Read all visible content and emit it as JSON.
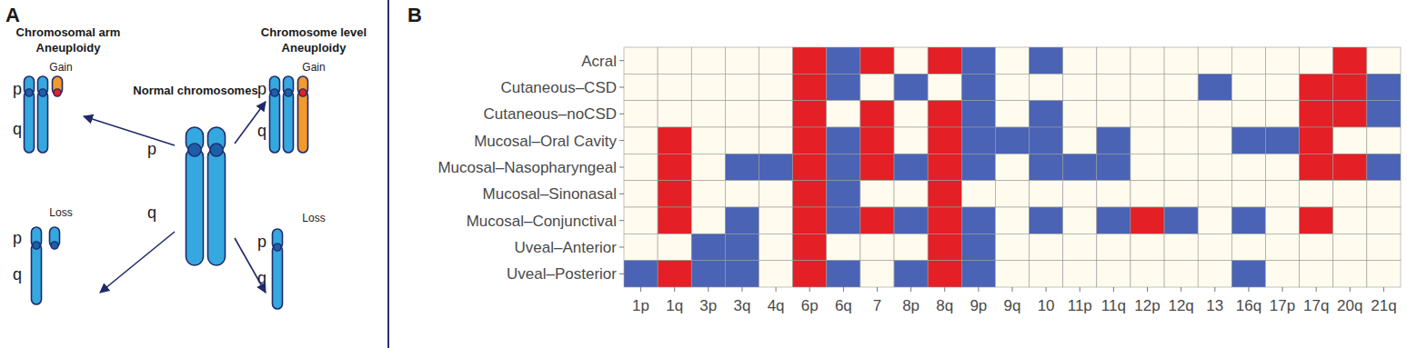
{
  "chart_data": {
    "type": "heatmap",
    "panel_label": "B",
    "categories": [
      "1p",
      "1q",
      "3p",
      "3q",
      "4q",
      "6p",
      "6q",
      "7",
      "8p",
      "8q",
      "9p",
      "9q",
      "10",
      "11p",
      "11q",
      "12p",
      "12q",
      "13",
      "16q",
      "17p",
      "17q",
      "20q",
      "21q"
    ],
    "rows": [
      "Acral",
      "Cutaneous–CSD",
      "Cutaneous–noCSD",
      "Mucosal–Oral Cavity",
      "Mucosal–Nasopharyngeal",
      "Mucosal–Sinonasal",
      "Mucosal–Conjunctival",
      "Uveal–Anterior",
      "Uveal–Posterior"
    ],
    "cells": [
      [
        0,
        0,
        0,
        0,
        0,
        1,
        -1,
        1,
        0,
        1,
        -1,
        0,
        -1,
        0,
        0,
        0,
        0,
        0,
        0,
        0,
        0,
        1,
        0
      ],
      [
        0,
        0,
        0,
        0,
        0,
        1,
        -1,
        0,
        -1,
        0,
        -1,
        0,
        0,
        0,
        0,
        0,
        0,
        -1,
        0,
        0,
        1,
        1,
        -1
      ],
      [
        0,
        0,
        0,
        0,
        0,
        1,
        0,
        1,
        0,
        1,
        -1,
        0,
        -1,
        0,
        0,
        0,
        0,
        0,
        0,
        0,
        1,
        1,
        -1
      ],
      [
        0,
        1,
        0,
        0,
        0,
        1,
        -1,
        1,
        0,
        1,
        -1,
        -1,
        -1,
        0,
        -1,
        0,
        0,
        0,
        -1,
        -1,
        1,
        0,
        0
      ],
      [
        0,
        1,
        0,
        -1,
        -1,
        1,
        -1,
        1,
        -1,
        1,
        -1,
        0,
        -1,
        -1,
        -1,
        0,
        0,
        0,
        0,
        0,
        1,
        1,
        -1
      ],
      [
        0,
        1,
        0,
        0,
        0,
        1,
        -1,
        0,
        0,
        1,
        0,
        0,
        0,
        0,
        0,
        0,
        0,
        0,
        0,
        0,
        0,
        0,
        0
      ],
      [
        0,
        1,
        0,
        -1,
        0,
        1,
        -1,
        1,
        -1,
        1,
        -1,
        0,
        -1,
        0,
        -1,
        1,
        -1,
        0,
        -1,
        0,
        1,
        0,
        0
      ],
      [
        0,
        0,
        -1,
        -1,
        0,
        1,
        0,
        0,
        0,
        1,
        -1,
        0,
        0,
        0,
        0,
        0,
        0,
        0,
        0,
        0,
        0,
        0,
        0
      ],
      [
        -1,
        1,
        -1,
        -1,
        0,
        1,
        -1,
        0,
        -1,
        1,
        -1,
        0,
        0,
        0,
        0,
        0,
        0,
        0,
        -1,
        0,
        0,
        0,
        0
      ]
    ]
  },
  "diagram": {
    "panel_label": "A",
    "arm_title": "Chromosomal arm",
    "arm_subtitle": "Aneuploidy",
    "chromosome_title": "Chromosome level",
    "chromosome_subtitle": "Aneuploidy",
    "normal_label": "Normal chromosomes",
    "gain_label": "Gain",
    "loss_label": "Loss",
    "p_label": "p",
    "q_label": "q"
  }
}
